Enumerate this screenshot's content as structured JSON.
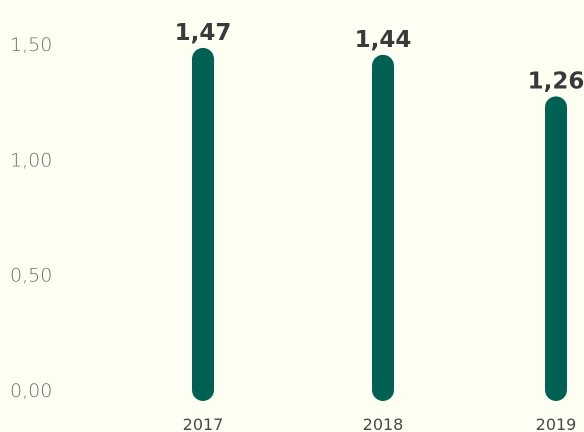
{
  "chart_data": {
    "type": "bar",
    "categories": [
      "2017",
      "2018",
      "2019"
    ],
    "values": [
      1.47,
      1.44,
      1.26
    ],
    "data_labels": [
      "1,47",
      "1,44",
      "1,26"
    ],
    "y_ticks": [
      {
        "value": 0.0,
        "label": "0,00"
      },
      {
        "value": 0.5,
        "label": "0,50"
      },
      {
        "value": 1.0,
        "label": "1,00"
      },
      {
        "value": 1.5,
        "label": "1,50"
      }
    ],
    "ylim": [
      0,
      1.5
    ],
    "grid": false,
    "bar_color": "#006052",
    "background_color": "#fefff3"
  }
}
